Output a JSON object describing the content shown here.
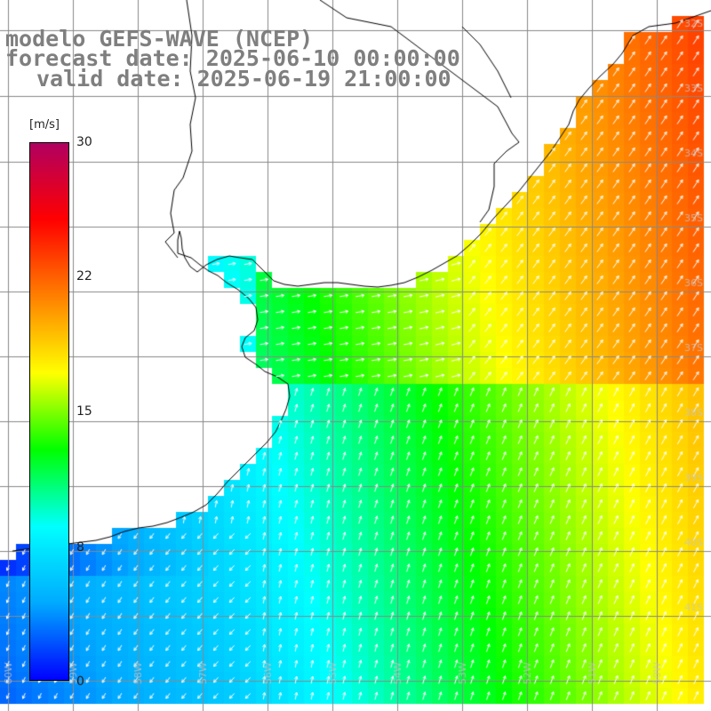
{
  "title": {
    "model": "modelo GEFS-WAVE (NCEP)",
    "forecast": "forecast date: 2025-06-10 00:00:00",
    "valid": "valid date: 2025-06-19 21:00:00"
  },
  "colorbar": {
    "unit": "[m/s]",
    "ticks": [
      "30",
      "22",
      "15",
      "8",
      "0"
    ],
    "min": 0,
    "max": 30,
    "colors": [
      "#0000ff",
      "#00aaff",
      "#00ffff",
      "#00ff00",
      "#ffff00",
      "#ff8000",
      "#ff0000",
      "#b00060"
    ]
  },
  "map": {
    "longitude_labels": [
      "60W",
      "59W",
      "58W",
      "57W",
      "56W",
      "55W",
      "54W",
      "53W",
      "52W",
      "51W",
      "50W"
    ],
    "latitude_labels": [
      "32S",
      "33S",
      "34S",
      "35S",
      "36S",
      "37S",
      "38S",
      "39S",
      "40S",
      "41S"
    ],
    "land_color": "#ffffff",
    "grid_color": "#888888",
    "arrow_color": "#ffffff"
  }
}
